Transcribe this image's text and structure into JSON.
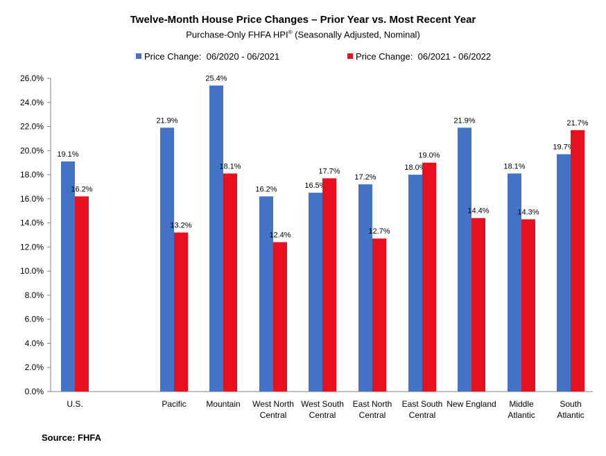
{
  "chart_data": {
    "type": "bar",
    "title": "Twelve-Month House Price Changes – Prior Year vs. Most Recent Year",
    "subtitle_text": "Purchase-Only FHFA HPI",
    "subtitle_mark": "®",
    "subtitle_suffix": " (Seasonally Adjusted, Nominal)",
    "categories": [
      [
        "U.S."
      ],
      [
        "Pacific"
      ],
      [
        "Mountain"
      ],
      [
        "West North",
        "Central"
      ],
      [
        "West South",
        "Central"
      ],
      [
        "East North",
        "Central"
      ],
      [
        "East South",
        "Central"
      ],
      [
        "New England"
      ],
      [
        "Middle",
        "Atlantic"
      ],
      [
        "South",
        "Atlantic"
      ]
    ],
    "series": [
      {
        "name": "Price Change:  06/2020 - 06/2021",
        "color": "#4472C4",
        "values": [
          19.1,
          21.9,
          25.4,
          16.2,
          16.5,
          17.2,
          18.0,
          21.9,
          18.1,
          19.7
        ],
        "labels": [
          "19.1%",
          "21.9%",
          "25.4%",
          "16.2%",
          "16.5%",
          "17.2%",
          "18.0%",
          "21.9%",
          "18.1%",
          "19.7%"
        ]
      },
      {
        "name": "Price Change:  06/2021 - 06/2022",
        "color": "#E8101E",
        "values": [
          16.2,
          13.2,
          18.1,
          12.4,
          17.7,
          12.7,
          19.0,
          14.4,
          14.3,
          21.7
        ],
        "labels": [
          "16.2%",
          "13.2%",
          "18.1%",
          "12.4%",
          "17.7%",
          "12.7%",
          "19.0%",
          "14.4%",
          "14.3%",
          "21.7%"
        ]
      }
    ],
    "yticks": [
      0,
      2,
      4,
      6,
      8,
      10,
      12,
      14,
      16,
      18,
      20,
      22,
      24,
      26
    ],
    "ytick_labels": [
      "0.0%",
      "2.0%",
      "4.0%",
      "6.0%",
      "8.0%",
      "10.0%",
      "12.0%",
      "14.0%",
      "16.0%",
      "18.0%",
      "20.0%",
      "22.0%",
      "24.0%",
      "26.0%"
    ],
    "ylim": [
      0,
      26
    ],
    "grid": false,
    "legend_position": "top"
  },
  "source_note": "Source: FHFA"
}
